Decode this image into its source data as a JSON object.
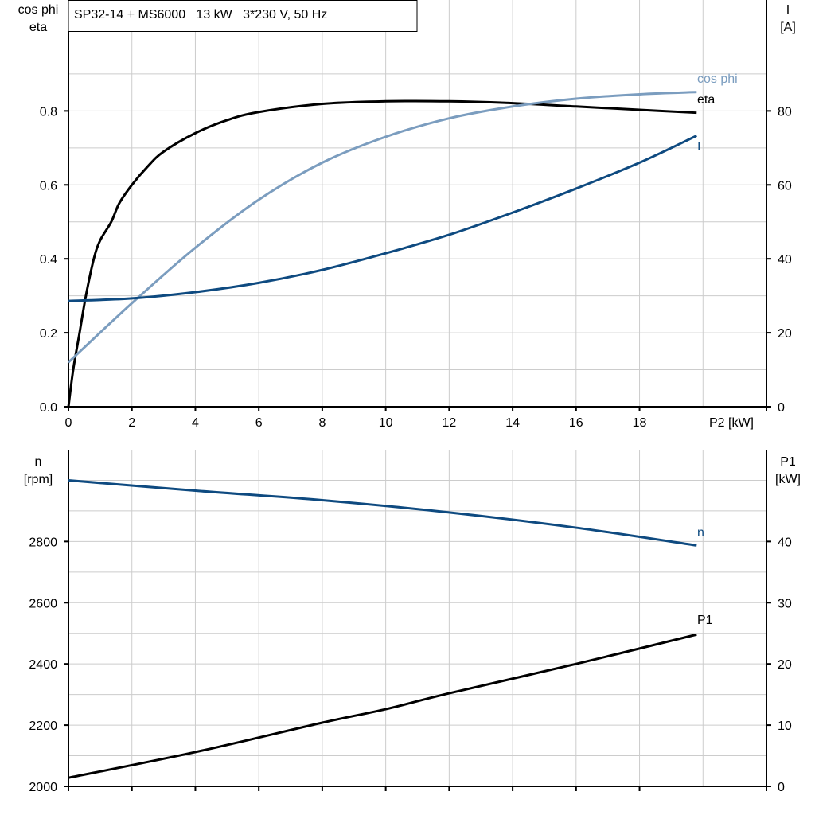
{
  "title": "SP32-14 + MS6000   13 kW   3*230 V, 50 Hz",
  "colors": {
    "eta": "#000000",
    "cos_phi": "#7b9dbf",
    "I": "#0e4a80",
    "n": "#0e4a80",
    "P1": "#000000",
    "grid": "#cccccc"
  },
  "chart_data": [
    {
      "type": "line",
      "xlabel": "P2 [kW]",
      "ylabel_left": [
        "cos phi",
        "eta"
      ],
      "ylabel_right": [
        "I",
        "[A]"
      ],
      "xlim": [
        0,
        22
      ],
      "ylim_left": [
        0,
        1.1
      ],
      "ylim_right": [
        0,
        110
      ],
      "x_ticks": [
        0,
        2,
        4,
        6,
        8,
        10,
        12,
        14,
        16,
        18
      ],
      "y_ticks_left": [
        "0.0",
        "0.2",
        "0.4",
        "0.6",
        "0.8"
      ],
      "y_ticks_right": [
        "0",
        "20",
        "40",
        "60",
        "80"
      ],
      "grid": true,
      "series": [
        {
          "name": "eta",
          "axis": "left",
          "color_key": "eta",
          "x": [
            0,
            0.15,
            0.35,
            0.55,
            0.8,
            1.0,
            1.35,
            1.6,
            2,
            2.5,
            3,
            4,
            5,
            6,
            8,
            10,
            12,
            14,
            16,
            18,
            19.8
          ],
          "y": [
            0,
            0.1,
            0.2,
            0.3,
            0.4,
            0.45,
            0.5,
            0.55,
            0.6,
            0.65,
            0.69,
            0.74,
            0.775,
            0.797,
            0.819,
            0.826,
            0.826,
            0.821,
            0.812,
            0.803,
            0.795
          ]
        },
        {
          "name": "cos phi",
          "axis": "left",
          "color_key": "cos_phi",
          "x": [
            0,
            2,
            4,
            6,
            8,
            10,
            12,
            14,
            16,
            18,
            19.8
          ],
          "y": [
            0.12,
            0.28,
            0.43,
            0.56,
            0.66,
            0.73,
            0.78,
            0.812,
            0.833,
            0.845,
            0.851
          ]
        },
        {
          "name": "I",
          "axis": "right",
          "color_key": "I",
          "x": [
            0,
            2,
            4,
            6,
            8,
            10,
            12,
            14,
            16,
            18,
            19.8
          ],
          "y": [
            28.6,
            29.3,
            31,
            33.5,
            37,
            41.5,
            46.5,
            52.5,
            59,
            66,
            73.3
          ]
        }
      ]
    },
    {
      "type": "line",
      "xlabel": "",
      "ylabel_left": [
        "n",
        "[rpm]"
      ],
      "ylabel_right": [
        "P1",
        "[kW]"
      ],
      "xlim": [
        0,
        22
      ],
      "ylim_left": [
        2000,
        3100
      ],
      "ylim_right": [
        0,
        55
      ],
      "x_ticks": [
        0,
        2,
        4,
        6,
        8,
        10,
        12,
        14,
        16,
        18
      ],
      "y_ticks_left": [
        "2000",
        "2200",
        "2400",
        "2600",
        "2800"
      ],
      "y_ticks_right": [
        "0",
        "10",
        "20",
        "30",
        "40"
      ],
      "grid": true,
      "series": [
        {
          "name": "n",
          "axis": "left",
          "color_key": "n",
          "x": [
            0,
            4,
            8,
            12,
            16,
            19.8
          ],
          "y": [
            3000,
            2966,
            2935,
            2895,
            2845,
            2787
          ]
        },
        {
          "name": "P1",
          "axis": "right",
          "color_key": "P1",
          "x": [
            0,
            4,
            8,
            10,
            12,
            16,
            19.8
          ],
          "y": [
            1.4,
            5.6,
            10.4,
            12.6,
            15.2,
            20.0,
            24.8
          ]
        }
      ]
    }
  ]
}
